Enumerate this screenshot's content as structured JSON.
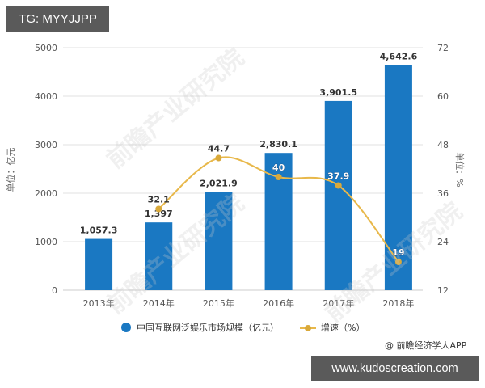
{
  "overlay": {
    "top_tag": "TG: MYYJJPP",
    "bottom_tag": "www.kudoscreation.com",
    "watermark": "前瞻产业研究院"
  },
  "colors": {
    "bar": "#1a78c2",
    "line": "#e8b84a",
    "marker": "#d9a93a",
    "grid": "#e0e0e0"
  },
  "chart_data": {
    "type": "bar",
    "title": "",
    "categories": [
      "2013年",
      "2014年",
      "2015年",
      "2016年",
      "2017年",
      "2018年"
    ],
    "series": [
      {
        "name": "中国互联网泛娱乐市场规模（亿元）",
        "type": "bar",
        "axis": "left",
        "values": [
          1057.3,
          1397,
          2021.9,
          2830.1,
          3901.5,
          4642.6
        ],
        "labels": [
          "1,057.3",
          "1,397",
          "2,021.9",
          "2,830.1",
          "3,901.5",
          "4,642.6"
        ]
      },
      {
        "name": "增速（%）",
        "type": "line",
        "axis": "right",
        "values": [
          null,
          32.1,
          44.7,
          40,
          37.9,
          19
        ],
        "labels": [
          "",
          "32.1",
          "44.7",
          "40",
          "37.9",
          "19"
        ]
      }
    ],
    "ylabel": "单位：亿元",
    "ylabel_right": "单位：%",
    "xlabel": "",
    "ylim": [
      0,
      5000
    ],
    "ylim_right": [
      12,
      72
    ],
    "yticks": [
      "0",
      "1000",
      "2000",
      "3000",
      "4000",
      "5000"
    ],
    "yticks_right": [
      "12",
      "24",
      "36",
      "48",
      "60",
      "72"
    ],
    "grid": true,
    "legend_position": "bottom",
    "source": "@ 前瞻经济学人APP"
  }
}
